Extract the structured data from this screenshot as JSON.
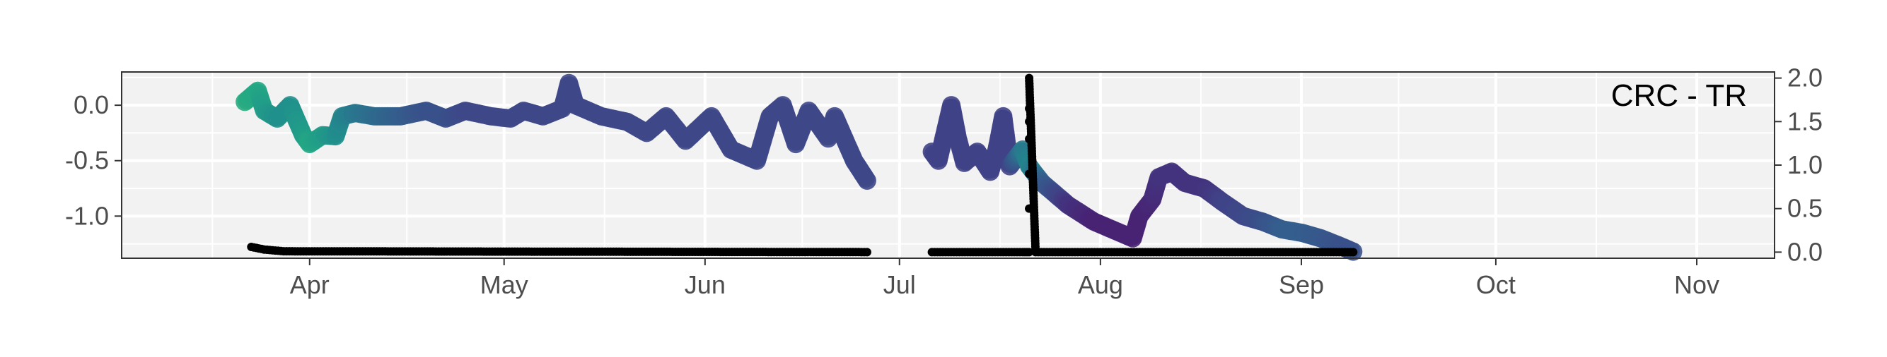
{
  "chart_data": {
    "type": "scatter",
    "title": "",
    "panel_label": "CRC - TR",
    "xlabel": "",
    "ylabel": "",
    "ylabel_right": "",
    "x_ticks": [
      {
        "date": "2021-04-01",
        "label": "Apr"
      },
      {
        "date": "2021-05-01",
        "label": "May"
      },
      {
        "date": "2021-06-01",
        "label": "Jun"
      },
      {
        "date": "2021-07-01",
        "label": "Jul"
      },
      {
        "date": "2021-08-01",
        "label": "Aug"
      },
      {
        "date": "2021-09-01",
        "label": "Sep"
      },
      {
        "date": "2021-10-01",
        "label": "Oct"
      },
      {
        "date": "2021-11-01",
        "label": "Nov"
      }
    ],
    "xlim": [
      "2021-03-03",
      "2021-11-13"
    ],
    "y_left": {
      "ticks": [
        0.0,
        -0.5,
        -1.0
      ],
      "tick_labels": [
        "0.0",
        "-0.5",
        "-1.0"
      ],
      "ylim": [
        -1.38,
        0.3
      ]
    },
    "y_right": {
      "ticks": [
        0.0,
        0.5,
        1.0,
        1.5,
        2.0
      ],
      "tick_labels": [
        "0.0",
        "0.5",
        "1.0",
        "1.5",
        "2.0"
      ],
      "ylim": [
        -0.07,
        2.07
      ]
    },
    "grid": true,
    "background": "#f2f2f2",
    "gridline_color": "#ffffff",
    "colormap": "viridis",
    "series": [
      {
        "axis": "left",
        "marker": "large circle colored by value",
        "segments": [
          [
            {
              "x": "2021-03-22",
              "y": 0.03,
              "c": 0.62
            },
            {
              "x": "2021-03-24",
              "y": 0.13,
              "c": 0.6
            },
            {
              "x": "2021-03-25",
              "y": -0.05,
              "c": 0.55
            },
            {
              "x": "2021-03-27",
              "y": -0.12,
              "c": 0.5
            },
            {
              "x": "2021-03-29",
              "y": 0.0,
              "c": 0.5
            },
            {
              "x": "2021-03-31",
              "y": -0.27,
              "c": 0.55
            },
            {
              "x": "2021-04-01",
              "y": -0.35,
              "c": 0.6
            },
            {
              "x": "2021-04-03",
              "y": -0.27,
              "c": 0.55
            },
            {
              "x": "2021-04-05",
              "y": -0.28,
              "c": 0.5
            },
            {
              "x": "2021-04-06",
              "y": -0.1,
              "c": 0.45
            },
            {
              "x": "2021-04-08",
              "y": -0.07,
              "c": 0.4
            },
            {
              "x": "2021-04-11",
              "y": -0.1,
              "c": 0.35
            },
            {
              "x": "2021-04-15",
              "y": -0.1,
              "c": 0.3
            },
            {
              "x": "2021-04-19",
              "y": -0.05,
              "c": 0.25
            },
            {
              "x": "2021-04-22",
              "y": -0.12,
              "c": 0.25
            },
            {
              "x": "2021-04-25",
              "y": -0.05,
              "c": 0.22
            },
            {
              "x": "2021-04-29",
              "y": -0.1,
              "c": 0.22
            },
            {
              "x": "2021-05-02",
              "y": -0.12,
              "c": 0.22
            },
            {
              "x": "2021-05-04",
              "y": -0.05,
              "c": 0.22
            },
            {
              "x": "2021-05-07",
              "y": -0.1,
              "c": 0.22
            },
            {
              "x": "2021-05-10",
              "y": -0.03,
              "c": 0.22
            },
            {
              "x": "2021-05-11",
              "y": 0.2,
              "c": 0.22
            },
            {
              "x": "2021-05-12",
              "y": 0.0,
              "c": 0.22
            },
            {
              "x": "2021-05-16",
              "y": -0.1,
              "c": 0.22
            },
            {
              "x": "2021-05-20",
              "y": -0.15,
              "c": 0.22
            },
            {
              "x": "2021-05-23",
              "y": -0.25,
              "c": 0.22
            },
            {
              "x": "2021-05-26",
              "y": -0.1,
              "c": 0.22
            },
            {
              "x": "2021-05-29",
              "y": -0.32,
              "c": 0.22
            },
            {
              "x": "2021-06-02",
              "y": -0.1,
              "c": 0.22
            },
            {
              "x": "2021-06-05",
              "y": -0.4,
              "c": 0.22
            },
            {
              "x": "2021-06-09",
              "y": -0.5,
              "c": 0.22
            },
            {
              "x": "2021-06-11",
              "y": -0.1,
              "c": 0.22
            },
            {
              "x": "2021-06-13",
              "y": 0.0,
              "c": 0.22
            },
            {
              "x": "2021-06-15",
              "y": -0.35,
              "c": 0.22
            },
            {
              "x": "2021-06-17",
              "y": -0.05,
              "c": 0.22
            },
            {
              "x": "2021-06-20",
              "y": -0.3,
              "c": 0.22
            },
            {
              "x": "2021-06-21",
              "y": -0.1,
              "c": 0.22
            },
            {
              "x": "2021-06-24",
              "y": -0.5,
              "c": 0.22
            },
            {
              "x": "2021-06-26",
              "y": -0.68,
              "c": 0.22
            }
          ],
          [
            {
              "x": "2021-07-06",
              "y": -0.42,
              "c": 0.2
            },
            {
              "x": "2021-07-07",
              "y": -0.5,
              "c": 0.2
            },
            {
              "x": "2021-07-09",
              "y": 0.0,
              "c": 0.2
            },
            {
              "x": "2021-07-10",
              "y": -0.3,
              "c": 0.2
            },
            {
              "x": "2021-07-11",
              "y": -0.52,
              "c": 0.2
            },
            {
              "x": "2021-07-13",
              "y": -0.42,
              "c": 0.2
            },
            {
              "x": "2021-07-15",
              "y": -0.6,
              "c": 0.2
            },
            {
              "x": "2021-07-16",
              "y": -0.4,
              "c": 0.2
            },
            {
              "x": "2021-07-17",
              "y": -0.1,
              "c": 0.2
            },
            {
              "x": "2021-07-18",
              "y": -0.55,
              "c": 0.2
            },
            {
              "x": "2021-07-20",
              "y": -0.4,
              "c": 0.4
            },
            {
              "x": "2021-07-21",
              "y": -0.55,
              "c": 0.45
            },
            {
              "x": "2021-07-23",
              "y": -0.7,
              "c": 0.3
            },
            {
              "x": "2021-07-27",
              "y": -0.9,
              "c": 0.15
            },
            {
              "x": "2021-07-31",
              "y": -1.05,
              "c": 0.1
            },
            {
              "x": "2021-08-04",
              "y": -1.15,
              "c": 0.1
            },
            {
              "x": "2021-08-06",
              "y": -1.2,
              "c": 0.1
            },
            {
              "x": "2021-08-07",
              "y": -1.0,
              "c": 0.1
            },
            {
              "x": "2021-08-09",
              "y": -0.85,
              "c": 0.12
            },
            {
              "x": "2021-08-10",
              "y": -0.65,
              "c": 0.15
            },
            {
              "x": "2021-08-12",
              "y": -0.6,
              "c": 0.15
            },
            {
              "x": "2021-08-14",
              "y": -0.7,
              "c": 0.15
            },
            {
              "x": "2021-08-17",
              "y": -0.75,
              "c": 0.15
            },
            {
              "x": "2021-08-20",
              "y": -0.88,
              "c": 0.2
            },
            {
              "x": "2021-08-23",
              "y": -1.0,
              "c": 0.22
            },
            {
              "x": "2021-08-26",
              "y": -1.05,
              "c": 0.25
            },
            {
              "x": "2021-08-29",
              "y": -1.12,
              "c": 0.3
            },
            {
              "x": "2021-09-01",
              "y": -1.15,
              "c": 0.3
            },
            {
              "x": "2021-09-04",
              "y": -1.2,
              "c": 0.28
            },
            {
              "x": "2021-09-07",
              "y": -1.27,
              "c": 0.25
            },
            {
              "x": "2021-09-09",
              "y": -1.32,
              "c": 0.25
            }
          ]
        ]
      },
      {
        "axis": "right",
        "marker": "small black dot",
        "color": "#000000",
        "segments": [
          [
            {
              "x": "2021-03-23",
              "y": 0.06
            },
            {
              "x": "2021-03-25",
              "y": 0.03
            },
            {
              "x": "2021-03-28",
              "y": 0.01
            },
            {
              "x": "2021-06-26",
              "y": 0.0
            }
          ],
          [
            {
              "x": "2021-07-06",
              "y": 0.0
            },
            {
              "x": "2021-07-20",
              "y": 0.0
            },
            {
              "x": "2021-07-21",
              "y": 0.0
            },
            {
              "x": "2021-07-21",
              "y": 0.5
            },
            {
              "x": "2021-07-21",
              "y": 0.9
            },
            {
              "x": "2021-07-21",
              "y": 1.3
            },
            {
              "x": "2021-07-21",
              "y": 1.5
            },
            {
              "x": "2021-07-21",
              "y": 1.65
            },
            {
              "x": "2021-07-21",
              "y": 2.0
            },
            {
              "x": "2021-07-22",
              "y": 0.0
            },
            {
              "x": "2021-09-09",
              "y": 0.0
            }
          ]
        ]
      }
    ]
  }
}
